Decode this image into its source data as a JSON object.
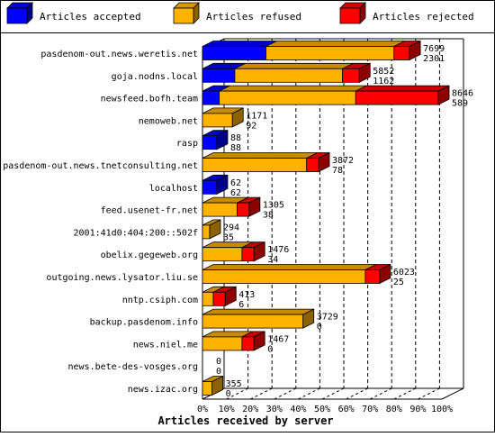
{
  "legend": [
    {
      "label": "Articles accepted",
      "key": "accepted",
      "color": "#0000ff"
    },
    {
      "label": "Articles refused",
      "key": "refused",
      "color": "#ffb200"
    },
    {
      "label": "Articles rejected",
      "key": "rejected",
      "color": "#ff0000"
    }
  ],
  "chart_data": {
    "type": "bar",
    "orientation": "horizontal",
    "stacked": true,
    "style": "3d",
    "xlabel": "Articles received by server",
    "xlim": [
      0,
      100
    ],
    "x_unit": "%",
    "x_ticks": [
      "0%",
      "10%",
      "20%",
      "30%",
      "40%",
      "50%",
      "60%",
      "70%",
      "80%",
      "90%",
      "100%"
    ],
    "grid": "vertical dashed",
    "legend_position": "top",
    "categories": [
      "pasdenom-out.news.weretis.net",
      "goja.nodns.local",
      "newsfeed.bofh.team",
      "nemoweb.net",
      "rasp",
      "pasdenom-out.news.tnetconsulting.net",
      "localhost",
      "feed.usenet-fr.net",
      "2001:41d0:404:200::502f",
      "obelix.gegeweb.org",
      "outgoing.news.lysator.liu.se",
      "nntp.csiph.com",
      "backup.pasdenom.info",
      "news.niel.me",
      "news.bete-des-vosges.org",
      "news.izac.org"
    ],
    "series": [
      {
        "name": "Articles accepted",
        "key": "accepted",
        "values": [
          26.5,
          13.5,
          7.0,
          0.0,
          6.0,
          0.0,
          6.0,
          0.0,
          0.0,
          0.0,
          0.0,
          0.0,
          0.0,
          0.0,
          0.0,
          0.0
        ]
      },
      {
        "name": "Articles refused",
        "key": "refused",
        "values": [
          53.5,
          45.0,
          57.0,
          12.5,
          0.0,
          43.5,
          0.0,
          14.5,
          3.0,
          16.5,
          68.0,
          4.5,
          42.0,
          16.5,
          0.0,
          4.0
        ]
      },
      {
        "name": "Articles rejected",
        "key": "rejected",
        "values": [
          6.5,
          7.0,
          34.5,
          0.0,
          0.0,
          5.0,
          0.0,
          5.0,
          0.0,
          5.0,
          6.0,
          5.0,
          0.0,
          5.0,
          0.0,
          0.0
        ]
      }
    ],
    "label_top": [
      "7699",
      "5852",
      "8646",
      "1171",
      "88",
      "3872",
      "62",
      "1305",
      "294",
      "1476",
      "6023",
      "413",
      "3729",
      "1467",
      "0",
      "355"
    ],
    "label_bottom": [
      "2301",
      "1162",
      "589",
      "92",
      "88",
      "78",
      "62",
      "38",
      "35",
      "34",
      "25",
      "6",
      "0",
      "0",
      "0",
      "0"
    ]
  },
  "colors": {
    "accepted": "#0000ff",
    "refused": "#ffb200",
    "rejected": "#ff0000",
    "grid": "#000000"
  }
}
